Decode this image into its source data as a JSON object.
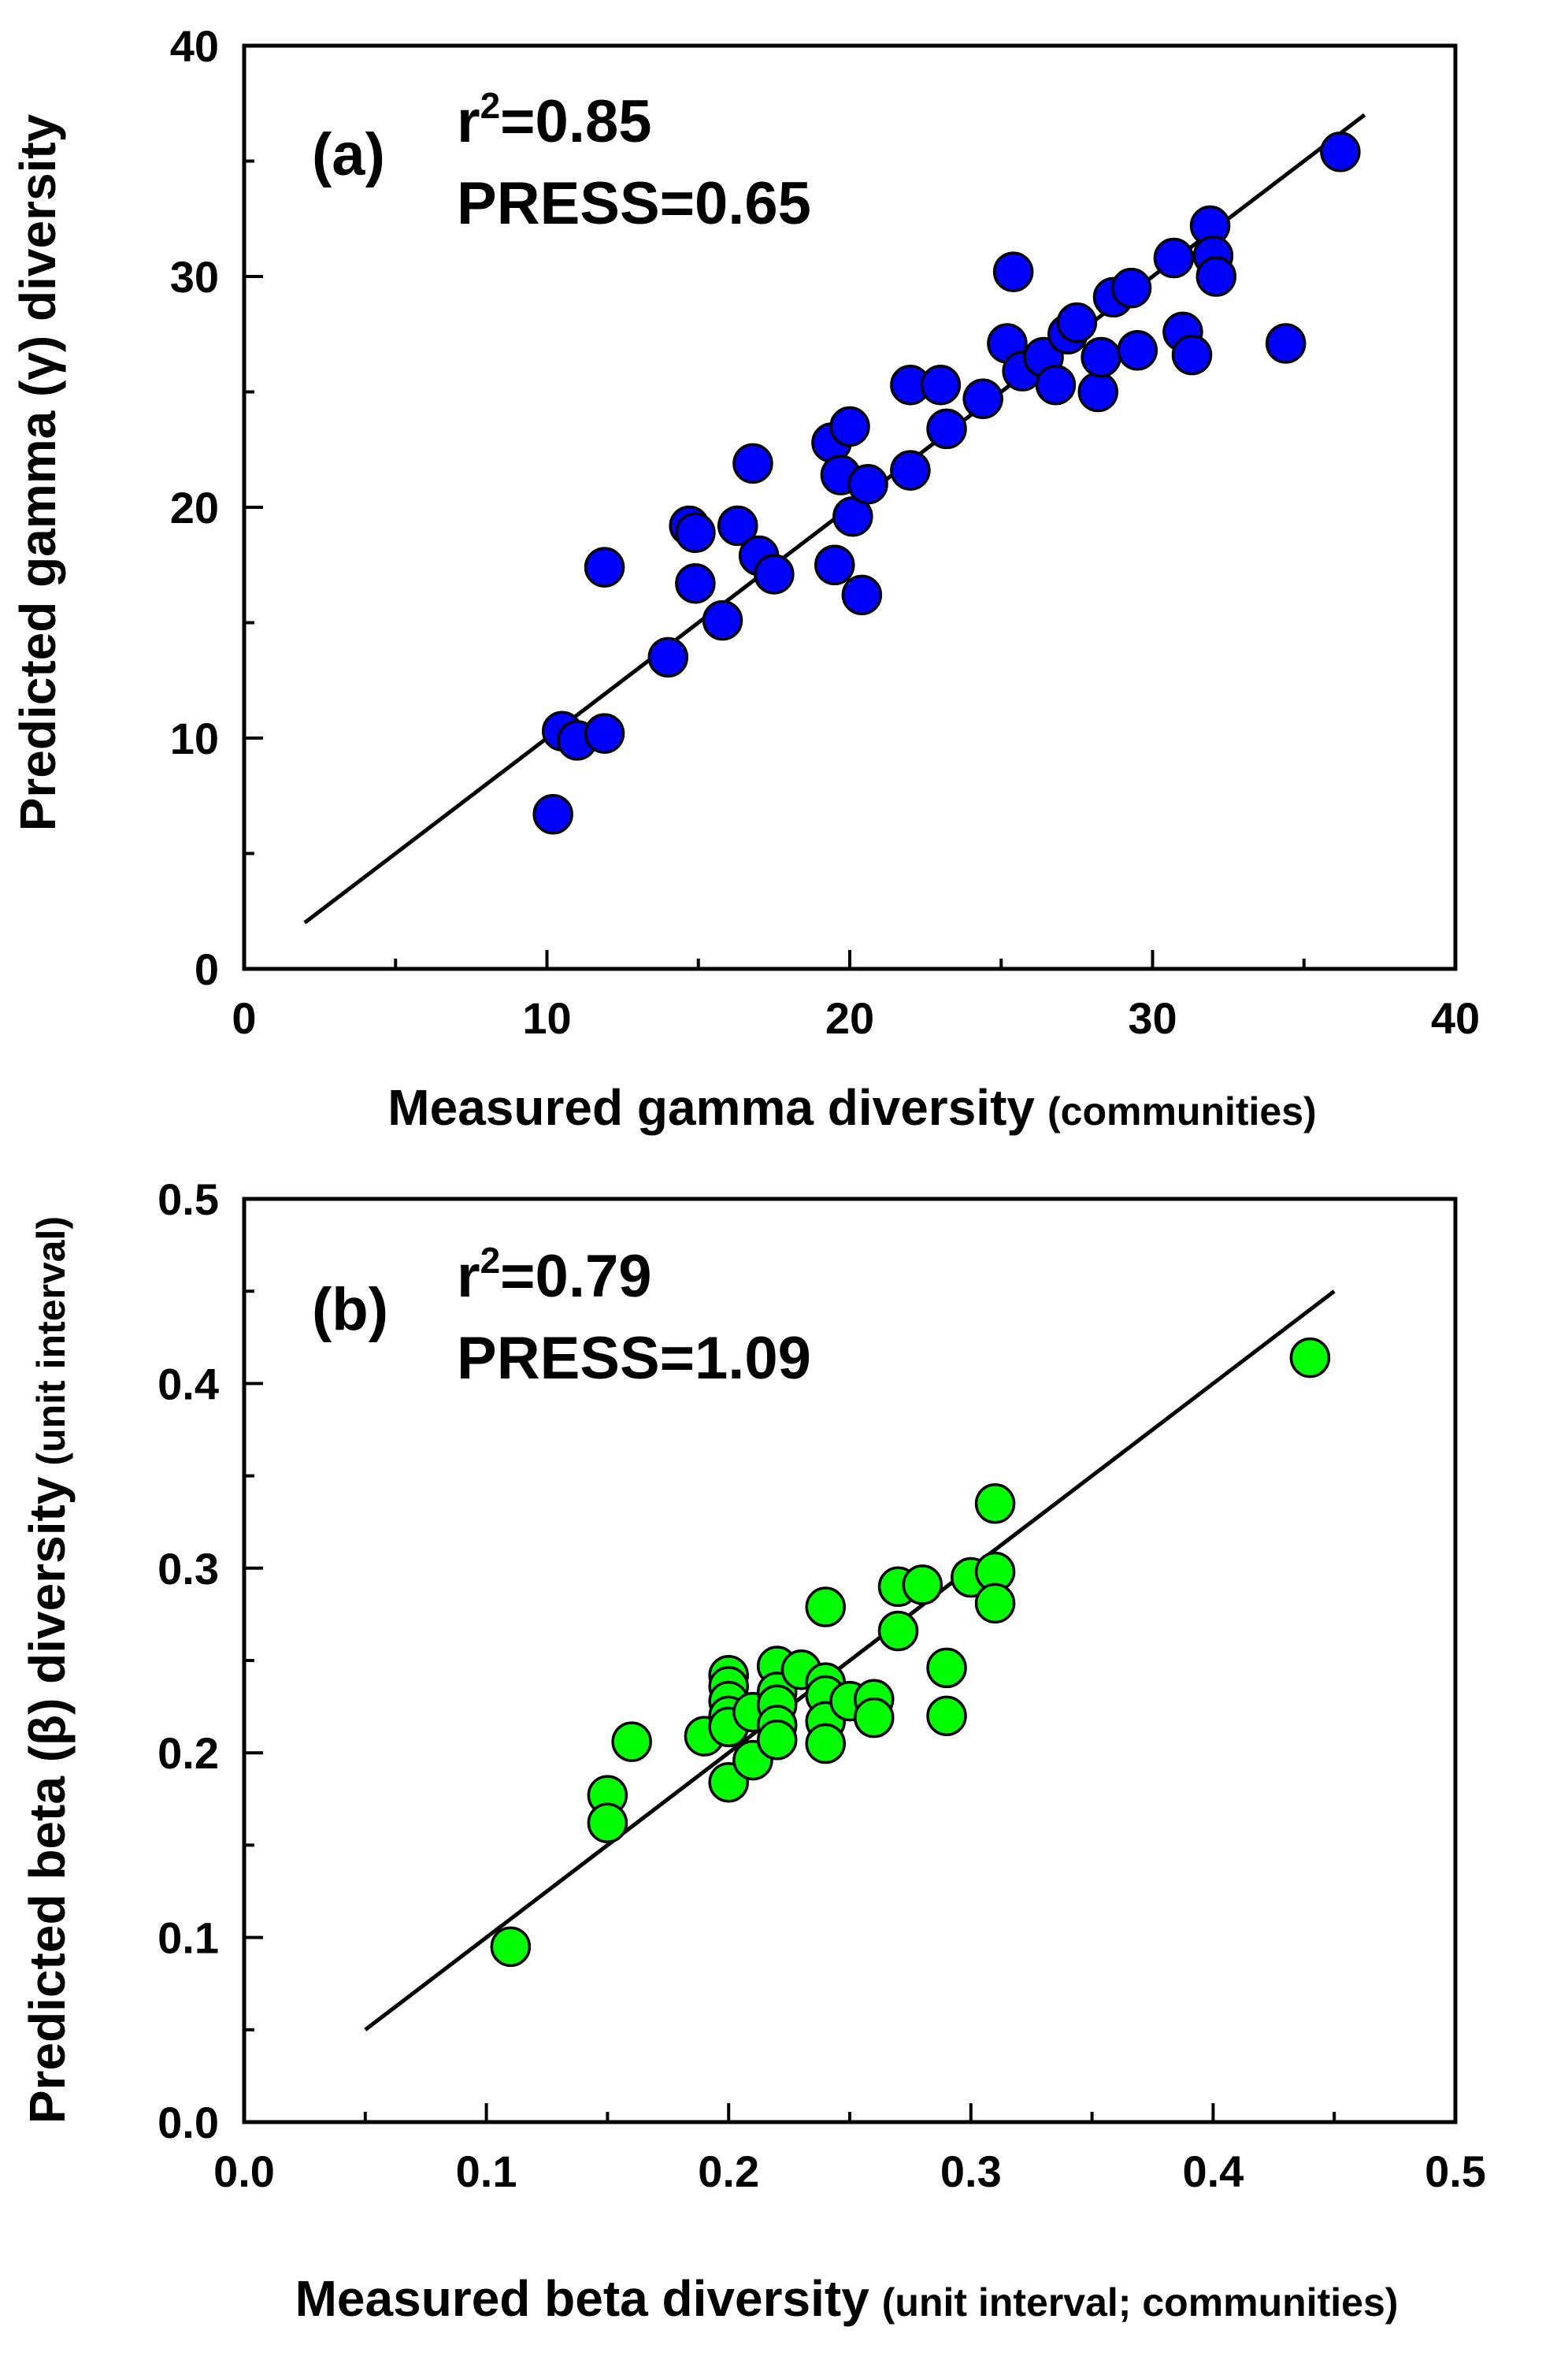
{
  "chart_data": [
    {
      "type": "scatter",
      "panel_label": "(a)",
      "stat_r2_base": "r",
      "stat_r2_sup": "2",
      "stat_r2_value": "=0.85",
      "stat_press": "PRESS=0.65",
      "xlabel_main": "Measured gamma diversity",
      "xlabel_unit": "(communities)",
      "ylabel": "Predicted gamma (γ) diversity",
      "xlim": [
        0,
        40
      ],
      "ylim": [
        0,
        40
      ],
      "xticks": [
        0,
        10,
        20,
        30,
        40
      ],
      "yticks": [
        0,
        10,
        20,
        30,
        40
      ],
      "xtick_labels": [
        "0",
        "10",
        "20",
        "30",
        "40"
      ],
      "ytick_labels": [
        "0",
        "10",
        "20",
        "30",
        "40"
      ],
      "minor_step": 5,
      "grid": false,
      "marker_color": "#0000ff",
      "fit_line": [
        [
          2,
          2
        ],
        [
          37,
          37
        ]
      ],
      "points": [
        [
          10.2,
          6.7
        ],
        [
          10.5,
          10.3
        ],
        [
          11.0,
          9.9
        ],
        [
          11.9,
          10.2
        ],
        [
          11.9,
          17.4
        ],
        [
          14.0,
          13.5
        ],
        [
          14.7,
          19.2
        ],
        [
          14.9,
          18.9
        ],
        [
          14.9,
          16.7
        ],
        [
          15.8,
          15.1
        ],
        [
          16.3,
          19.2
        ],
        [
          16.8,
          21.9
        ],
        [
          17.0,
          17.9
        ],
        [
          17.5,
          17.1
        ],
        [
          19.4,
          22.8
        ],
        [
          19.5,
          17.5
        ],
        [
          19.7,
          21.4
        ],
        [
          20.0,
          23.5
        ],
        [
          20.1,
          19.6
        ],
        [
          20.4,
          16.2
        ],
        [
          20.6,
          21.0
        ],
        [
          22.0,
          21.6
        ],
        [
          22.0,
          25.3
        ],
        [
          23.0,
          25.3
        ],
        [
          23.2,
          23.4
        ],
        [
          24.4,
          24.7
        ],
        [
          25.2,
          27.1
        ],
        [
          25.4,
          30.2
        ],
        [
          25.7,
          25.9
        ],
        [
          26.4,
          26.5
        ],
        [
          26.8,
          25.3
        ],
        [
          27.2,
          27.5
        ],
        [
          27.5,
          28.0
        ],
        [
          28.2,
          25.0
        ],
        [
          28.3,
          26.5
        ],
        [
          28.7,
          29.1
        ],
        [
          29.3,
          29.5
        ],
        [
          29.5,
          26.8
        ],
        [
          30.7,
          30.8
        ],
        [
          31.0,
          27.6
        ],
        [
          31.3,
          26.6
        ],
        [
          31.9,
          32.2
        ],
        [
          32.0,
          30.9
        ],
        [
          32.1,
          30.0
        ],
        [
          34.4,
          27.1
        ],
        [
          36.2,
          35.4
        ]
      ]
    },
    {
      "type": "scatter",
      "panel_label": "(b)",
      "stat_r2_base": "r",
      "stat_r2_sup": "2",
      "stat_r2_value": "=0.79",
      "stat_press": "PRESS=1.09",
      "xlabel_main": "Measured beta diversity",
      "xlabel_unit": "(unit interval; communities)",
      "ylabel_main": "Predicted beta (β) diversity",
      "ylabel_unit": "(unit interval)",
      "xlim": [
        0,
        0.5
      ],
      "ylim": [
        0,
        0.5
      ],
      "xticks": [
        0,
        0.1,
        0.2,
        0.3,
        0.4,
        0.5
      ],
      "yticks": [
        0,
        0.1,
        0.2,
        0.3,
        0.4,
        0.5
      ],
      "xtick_labels": [
        "0.0",
        "0.1",
        "0.2",
        "0.3",
        "0.4",
        "0.5"
      ],
      "ytick_labels": [
        "0.0",
        "0.1",
        "0.2",
        "0.3",
        "0.4",
        "0.5"
      ],
      "minor_step": 0.05,
      "grid": false,
      "marker_color": "#00ff00",
      "fit_line": [
        [
          0.05,
          0.05
        ],
        [
          0.45,
          0.45
        ]
      ],
      "points": [
        [
          0.11,
          0.095
        ],
        [
          0.15,
          0.177
        ],
        [
          0.15,
          0.162
        ],
        [
          0.16,
          0.206
        ],
        [
          0.19,
          0.209
        ],
        [
          0.2,
          0.242
        ],
        [
          0.2,
          0.236
        ],
        [
          0.2,
          0.228
        ],
        [
          0.2,
          0.22
        ],
        [
          0.2,
          0.214
        ],
        [
          0.2,
          0.184
        ],
        [
          0.21,
          0.222
        ],
        [
          0.21,
          0.196
        ],
        [
          0.22,
          0.247
        ],
        [
          0.22,
          0.233
        ],
        [
          0.22,
          0.226
        ],
        [
          0.22,
          0.215
        ],
        [
          0.22,
          0.207
        ],
        [
          0.23,
          0.245
        ],
        [
          0.24,
          0.279
        ],
        [
          0.24,
          0.238
        ],
        [
          0.24,
          0.231
        ],
        [
          0.24,
          0.217
        ],
        [
          0.24,
          0.205
        ],
        [
          0.25,
          0.228
        ],
        [
          0.26,
          0.229
        ],
        [
          0.26,
          0.219
        ],
        [
          0.27,
          0.29
        ],
        [
          0.27,
          0.266
        ],
        [
          0.28,
          0.291
        ],
        [
          0.29,
          0.246
        ],
        [
          0.29,
          0.22
        ],
        [
          0.3,
          0.295
        ],
        [
          0.31,
          0.335
        ],
        [
          0.31,
          0.298
        ],
        [
          0.31,
          0.281
        ],
        [
          0.44,
          0.414
        ]
      ]
    }
  ]
}
